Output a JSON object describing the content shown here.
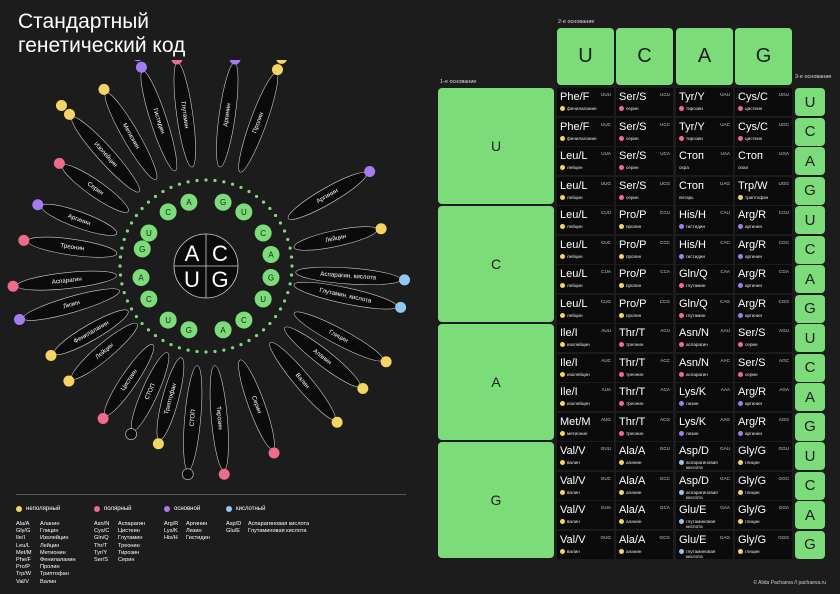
{
  "title": [
    "Стандартный",
    "генетический код"
  ],
  "colors": {
    "nonpolar": "#f2d562",
    "polar": "#f06a8c",
    "basic": "#a57cf0",
    "acidic": "#8fc8f0",
    "green": "#7ddc7a"
  },
  "center_letters": [
    "A",
    "C",
    "U",
    "G"
  ],
  "legend": {
    "categories": [
      {
        "label": "неполярный",
        "color": "#f2d562"
      },
      {
        "label": "полярный",
        "color": "#f06a8c"
      },
      {
        "label": "основной",
        "color": "#a57cf0"
      },
      {
        "label": "кислотный",
        "color": "#8fc8f0"
      }
    ],
    "columns": [
      {
        "codes": [
          "Ala/A",
          "Gly/G",
          "Ile/I",
          "Leu/L",
          "Met/M",
          "Phe/F",
          "Pro/P",
          "Trp/W",
          "Val/V"
        ],
        "names": [
          "Аланин",
          "Глицин",
          "Изолейцин",
          "Лейцин",
          "Метионин",
          "Фенилаланин",
          "Пролин",
          "Триптофан",
          "Валин"
        ]
      },
      {
        "codes": [
          "Asn/N",
          "Cys/C",
          "Gln/Q",
          "Thr/T",
          "Tyr/Y",
          "Ser/S"
        ],
        "names": [
          "Аспарагин",
          "Цистеин",
          "Глутамин",
          "Треонин",
          "Тирозин",
          "Серин"
        ]
      },
      {
        "codes": [
          "Arg/R",
          "Lys/K",
          "His/H"
        ],
        "names": [
          "Аргинин",
          "Лизин",
          "Гистидин"
        ]
      },
      {
        "codes": [
          "Asp/D",
          "Glu/E"
        ],
        "names": [
          "Аспарагиновая кислота",
          "Глутаминовая кислота"
        ]
      }
    ]
  },
  "wheel_labels": [
    "Аргинин",
    "Пролин",
    "Глутамин",
    "Гистидин",
    "Метионин",
    "Изолейцин",
    "Серин",
    "Аргинин",
    "Треонин",
    "Аспарагин",
    "Лизин",
    "Фенилаланин",
    "Лейцин",
    "Цистеин",
    "СТОП",
    "Триптофан",
    "Серин",
    "Тирозин",
    "СТОП",
    "Валин",
    "Глицин",
    "Аланин",
    "Глутамин. кислота",
    "Аспарагин. кислота",
    "Лейцин",
    "Аргинин"
  ],
  "table": {
    "header_second": "2-е основание",
    "header_first": "1-е основание",
    "header_third": "3-е основание",
    "bases": [
      "U",
      "C",
      "A",
      "G"
    ],
    "rows": [
      [
        [
          "Phe/F",
          "UUU",
          "фенилаланин",
          "nonpolar"
        ],
        [
          "Ser/S",
          "UCU",
          "серин",
          "polar"
        ],
        [
          "Tyr/Y",
          "UAU",
          "тирозин",
          "polar"
        ],
        [
          "Cys/C",
          "UGU",
          "цистеин",
          "polar"
        ]
      ],
      [
        [
          "Phe/F",
          "UUC",
          "фенилаланин",
          "nonpolar"
        ],
        [
          "Ser/S",
          "UCC",
          "серин",
          "polar"
        ],
        [
          "Tyr/Y",
          "UAC",
          "тирозин",
          "polar"
        ],
        [
          "Cys/C",
          "UGC",
          "цистеин",
          "polar"
        ]
      ],
      [
        [
          "Leu/L",
          "UUA",
          "лейцин",
          "nonpolar"
        ],
        [
          "Ser/S",
          "UCA",
          "серин",
          "polar"
        ],
        [
          "Стоп",
          "UAA",
          "охра",
          "none"
        ],
        [
          "Стоп",
          "UGA",
          "опал",
          "none"
        ]
      ],
      [
        [
          "Leu/L",
          "UUG",
          "лейцин",
          "nonpolar"
        ],
        [
          "Ser/S",
          "UCG",
          "серин",
          "polar"
        ],
        [
          "Стоп",
          "UAG",
          "янтарь",
          "none"
        ],
        [
          "Trp/W",
          "UGG",
          "триптофан",
          "nonpolar"
        ]
      ],
      [
        [
          "Leu/L",
          "CUU",
          "лейцин",
          "nonpolar"
        ],
        [
          "Pro/P",
          "CCU",
          "пролин",
          "nonpolar"
        ],
        [
          "His/H",
          "CAU",
          "гистидин",
          "basic"
        ],
        [
          "Arg/R",
          "CGU",
          "аргинин",
          "basic"
        ]
      ],
      [
        [
          "Leu/L",
          "CUC",
          "лейцин",
          "nonpolar"
        ],
        [
          "Pro/P",
          "CCC",
          "пролин",
          "nonpolar"
        ],
        [
          "His/H",
          "CAC",
          "гистидин",
          "basic"
        ],
        [
          "Arg/R",
          "CGC",
          "аргинин",
          "basic"
        ]
      ],
      [
        [
          "Leu/L",
          "CUA",
          "лейцин",
          "nonpolar"
        ],
        [
          "Pro/P",
          "CCA",
          "пролин",
          "nonpolar"
        ],
        [
          "Gln/Q",
          "CAA",
          "глутамин",
          "polar"
        ],
        [
          "Arg/R",
          "CGA",
          "аргинин",
          "basic"
        ]
      ],
      [
        [
          "Leu/L",
          "CUG",
          "лейцин",
          "nonpolar"
        ],
        [
          "Pro/P",
          "CCG",
          "пролин",
          "nonpolar"
        ],
        [
          "Gln/Q",
          "CAG",
          "глутамин",
          "polar"
        ],
        [
          "Arg/R",
          "CGG",
          "аргинин",
          "basic"
        ]
      ],
      [
        [
          "Ile/I",
          "AUU",
          "изолейцин",
          "nonpolar"
        ],
        [
          "Thr/T",
          "ACU",
          "треонин",
          "polar"
        ],
        [
          "Asn/N",
          "AAU",
          "аспарагин",
          "polar"
        ],
        [
          "Ser/S",
          "AGU",
          "серин",
          "polar"
        ]
      ],
      [
        [
          "Ile/I",
          "AUC",
          "изолейцин",
          "nonpolar"
        ],
        [
          "Thr/T",
          "ACC",
          "треонин",
          "polar"
        ],
        [
          "Asn/N",
          "AAC",
          "аспарагин",
          "polar"
        ],
        [
          "Ser/S",
          "AGC",
          "серин",
          "polar"
        ]
      ],
      [
        [
          "Ile/I",
          "AUA",
          "изолейцин",
          "nonpolar"
        ],
        [
          "Thr/T",
          "ACA",
          "треонин",
          "polar"
        ],
        [
          "Lys/K",
          "AAA",
          "лизин",
          "basic"
        ],
        [
          "Arg/R",
          "AGA",
          "аргинин",
          "basic"
        ]
      ],
      [
        [
          "Met/M",
          "AUG",
          "метионин",
          "nonpolar"
        ],
        [
          "Thr/T",
          "ACG",
          "треонин",
          "polar"
        ],
        [
          "Lys/K",
          "AAG",
          "лизин",
          "basic"
        ],
        [
          "Arg/R",
          "AGG",
          "аргинин",
          "basic"
        ]
      ],
      [
        [
          "Val/V",
          "GUU",
          "валин",
          "nonpolar"
        ],
        [
          "Ala/A",
          "GCU",
          "аланин",
          "nonpolar"
        ],
        [
          "Asp/D",
          "GAU",
          "аспарагиновая кислота",
          "acidic"
        ],
        [
          "Gly/G",
          "GGU",
          "глицин",
          "nonpolar"
        ]
      ],
      [
        [
          "Val/V",
          "GUC",
          "валин",
          "nonpolar"
        ],
        [
          "Ala/A",
          "GCC",
          "аланин",
          "nonpolar"
        ],
        [
          "Asp/D",
          "GAC",
          "аспарагиновая кислота",
          "acidic"
        ],
        [
          "Gly/G",
          "GGC",
          "глицин",
          "nonpolar"
        ]
      ],
      [
        [
          "Val/V",
          "GUA",
          "валин",
          "nonpolar"
        ],
        [
          "Ala/A",
          "GCA",
          "аланин",
          "nonpolar"
        ],
        [
          "Glu/E",
          "GAA",
          "глутаминовая кислота",
          "acidic"
        ],
        [
          "Gly/G",
          "GGA",
          "глицин",
          "nonpolar"
        ]
      ],
      [
        [
          "Val/V",
          "GUG",
          "валин",
          "nonpolar"
        ],
        [
          "Ala/A",
          "GCG",
          "аланин",
          "nonpolar"
        ],
        [
          "Glu/E",
          "GAG",
          "глутаминовая кислота",
          "acidic"
        ],
        [
          "Gly/G",
          "GGG",
          "глицин",
          "nonpolar"
        ]
      ]
    ],
    "third": [
      "U",
      "C",
      "A",
      "G",
      "U",
      "C",
      "A",
      "G",
      "U",
      "C",
      "A",
      "G",
      "U",
      "C",
      "A",
      "G"
    ]
  },
  "credit": "© Alida Pachaeva // pachaeva.ru"
}
